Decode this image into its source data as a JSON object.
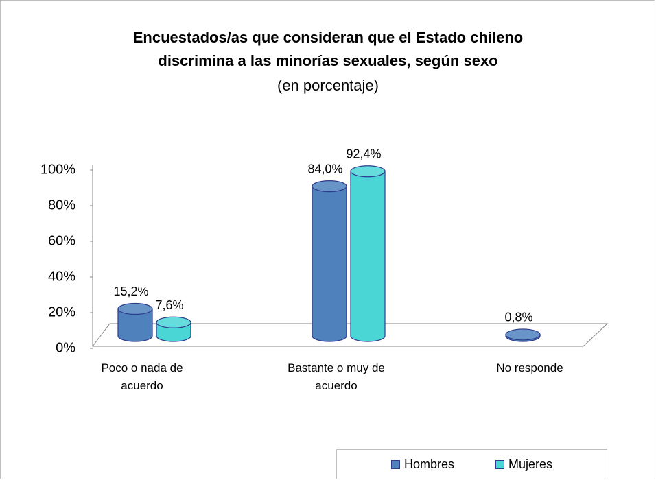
{
  "chart_data": {
    "type": "bar",
    "title": "Encuestados/as que consideran que el Estado chileno discrimina a las minorías sexuales, según sexo",
    "subtitle": "(en porcentaje)",
    "categories": [
      "Poco o nada de acuerdo",
      "Bastante o muy de acuerdo",
      "No responde"
    ],
    "series": [
      {
        "name": "Hombres",
        "color": "#4f81bd",
        "values": [
          15.2,
          84.0,
          0.8
        ],
        "value_labels": [
          "15,2%",
          "84,0%",
          "0,8%"
        ]
      },
      {
        "name": "Mujeres",
        "color": "#4bd6d6",
        "values": [
          7.6,
          92.4,
          null
        ],
        "value_labels": [
          "7,6%",
          "92,4%",
          null
        ]
      }
    ],
    "ylim": [
      0,
      100
    ],
    "yticks": [
      {
        "value": 0,
        "label": "0%"
      },
      {
        "value": 20,
        "label": "20%"
      },
      {
        "value": 40,
        "label": "40%"
      },
      {
        "value": 60,
        "label": "60%"
      },
      {
        "value": 80,
        "label": "80%"
      },
      {
        "value": 100,
        "label": "100%"
      }
    ],
    "legend": "bottom-right"
  }
}
